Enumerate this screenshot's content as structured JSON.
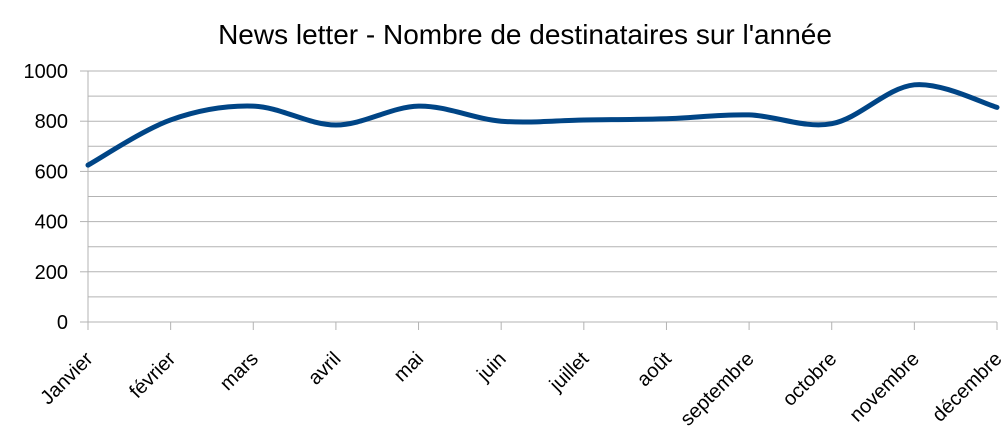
{
  "chart_data": {
    "type": "line",
    "title": "News letter - Nombre de destinataires sur l'année",
    "categories": [
      "Janvier",
      "février",
      "mars",
      "avril",
      "mai",
      "juin",
      "juillet",
      "août",
      "septembre",
      "octobre",
      "novembre",
      "décembre"
    ],
    "series": [
      {
        "name": "Destinataires",
        "color": "#004586",
        "values": [
          625,
          805,
          860,
          785,
          860,
          800,
          805,
          810,
          825,
          790,
          945,
          855
        ]
      }
    ],
    "ylim": [
      0,
      1000
    ],
    "yticks": [
      0,
      200,
      400,
      600,
      800,
      1000
    ],
    "minor_yticks": [
      100,
      300,
      500,
      700,
      900
    ],
    "grid": true,
    "smooth": true,
    "legend": false
  }
}
